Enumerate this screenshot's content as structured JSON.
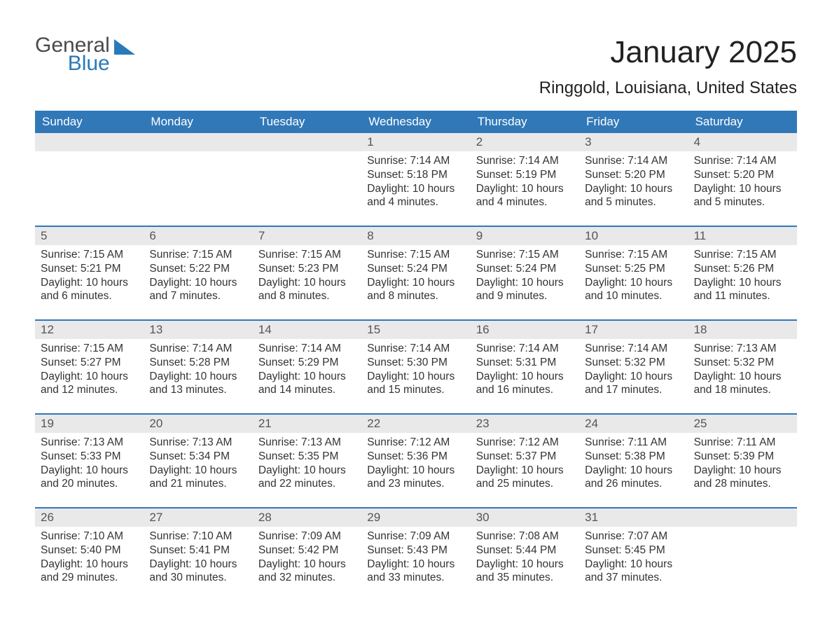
{
  "logo": {
    "general": "General",
    "blue": "Blue",
    "shape_color": "#2a7ab9"
  },
  "title": "January 2025",
  "subtitle": "Ringgold, Louisiana, United States",
  "colors": {
    "header_bg": "#3178b8",
    "header_text": "#ffffff",
    "daynum_bg": "#e9e9e9",
    "daynum_text": "#555555",
    "body_text": "#333333",
    "page_bg": "#ffffff",
    "week_border": "#3178b8"
  },
  "typography": {
    "title_fontsize": 44,
    "subtitle_fontsize": 24,
    "dayheader_fontsize": 17,
    "daynum_fontsize": 17,
    "body_fontsize": 15.5,
    "font_family": "Arial"
  },
  "day_names": [
    "Sunday",
    "Monday",
    "Tuesday",
    "Wednesday",
    "Thursday",
    "Friday",
    "Saturday"
  ],
  "weeks": [
    [
      {
        "day": "",
        "sunrise": "",
        "sunset": "",
        "daylight": ""
      },
      {
        "day": "",
        "sunrise": "",
        "sunset": "",
        "daylight": ""
      },
      {
        "day": "",
        "sunrise": "",
        "sunset": "",
        "daylight": ""
      },
      {
        "day": "1",
        "sunrise": "Sunrise: 7:14 AM",
        "sunset": "Sunset: 5:18 PM",
        "daylight": "Daylight: 10 hours and 4 minutes."
      },
      {
        "day": "2",
        "sunrise": "Sunrise: 7:14 AM",
        "sunset": "Sunset: 5:19 PM",
        "daylight": "Daylight: 10 hours and 4 minutes."
      },
      {
        "day": "3",
        "sunrise": "Sunrise: 7:14 AM",
        "sunset": "Sunset: 5:20 PM",
        "daylight": "Daylight: 10 hours and 5 minutes."
      },
      {
        "day": "4",
        "sunrise": "Sunrise: 7:14 AM",
        "sunset": "Sunset: 5:20 PM",
        "daylight": "Daylight: 10 hours and 5 minutes."
      }
    ],
    [
      {
        "day": "5",
        "sunrise": "Sunrise: 7:15 AM",
        "sunset": "Sunset: 5:21 PM",
        "daylight": "Daylight: 10 hours and 6 minutes."
      },
      {
        "day": "6",
        "sunrise": "Sunrise: 7:15 AM",
        "sunset": "Sunset: 5:22 PM",
        "daylight": "Daylight: 10 hours and 7 minutes."
      },
      {
        "day": "7",
        "sunrise": "Sunrise: 7:15 AM",
        "sunset": "Sunset: 5:23 PM",
        "daylight": "Daylight: 10 hours and 8 minutes."
      },
      {
        "day": "8",
        "sunrise": "Sunrise: 7:15 AM",
        "sunset": "Sunset: 5:24 PM",
        "daylight": "Daylight: 10 hours and 8 minutes."
      },
      {
        "day": "9",
        "sunrise": "Sunrise: 7:15 AM",
        "sunset": "Sunset: 5:24 PM",
        "daylight": "Daylight: 10 hours and 9 minutes."
      },
      {
        "day": "10",
        "sunrise": "Sunrise: 7:15 AM",
        "sunset": "Sunset: 5:25 PM",
        "daylight": "Daylight: 10 hours and 10 minutes."
      },
      {
        "day": "11",
        "sunrise": "Sunrise: 7:15 AM",
        "sunset": "Sunset: 5:26 PM",
        "daylight": "Daylight: 10 hours and 11 minutes."
      }
    ],
    [
      {
        "day": "12",
        "sunrise": "Sunrise: 7:15 AM",
        "sunset": "Sunset: 5:27 PM",
        "daylight": "Daylight: 10 hours and 12 minutes."
      },
      {
        "day": "13",
        "sunrise": "Sunrise: 7:14 AM",
        "sunset": "Sunset: 5:28 PM",
        "daylight": "Daylight: 10 hours and 13 minutes."
      },
      {
        "day": "14",
        "sunrise": "Sunrise: 7:14 AM",
        "sunset": "Sunset: 5:29 PM",
        "daylight": "Daylight: 10 hours and 14 minutes."
      },
      {
        "day": "15",
        "sunrise": "Sunrise: 7:14 AM",
        "sunset": "Sunset: 5:30 PM",
        "daylight": "Daylight: 10 hours and 15 minutes."
      },
      {
        "day": "16",
        "sunrise": "Sunrise: 7:14 AM",
        "sunset": "Sunset: 5:31 PM",
        "daylight": "Daylight: 10 hours and 16 minutes."
      },
      {
        "day": "17",
        "sunrise": "Sunrise: 7:14 AM",
        "sunset": "Sunset: 5:32 PM",
        "daylight": "Daylight: 10 hours and 17 minutes."
      },
      {
        "day": "18",
        "sunrise": "Sunrise: 7:13 AM",
        "sunset": "Sunset: 5:32 PM",
        "daylight": "Daylight: 10 hours and 18 minutes."
      }
    ],
    [
      {
        "day": "19",
        "sunrise": "Sunrise: 7:13 AM",
        "sunset": "Sunset: 5:33 PM",
        "daylight": "Daylight: 10 hours and 20 minutes."
      },
      {
        "day": "20",
        "sunrise": "Sunrise: 7:13 AM",
        "sunset": "Sunset: 5:34 PM",
        "daylight": "Daylight: 10 hours and 21 minutes."
      },
      {
        "day": "21",
        "sunrise": "Sunrise: 7:13 AM",
        "sunset": "Sunset: 5:35 PM",
        "daylight": "Daylight: 10 hours and 22 minutes."
      },
      {
        "day": "22",
        "sunrise": "Sunrise: 7:12 AM",
        "sunset": "Sunset: 5:36 PM",
        "daylight": "Daylight: 10 hours and 23 minutes."
      },
      {
        "day": "23",
        "sunrise": "Sunrise: 7:12 AM",
        "sunset": "Sunset: 5:37 PM",
        "daylight": "Daylight: 10 hours and 25 minutes."
      },
      {
        "day": "24",
        "sunrise": "Sunrise: 7:11 AM",
        "sunset": "Sunset: 5:38 PM",
        "daylight": "Daylight: 10 hours and 26 minutes."
      },
      {
        "day": "25",
        "sunrise": "Sunrise: 7:11 AM",
        "sunset": "Sunset: 5:39 PM",
        "daylight": "Daylight: 10 hours and 28 minutes."
      }
    ],
    [
      {
        "day": "26",
        "sunrise": "Sunrise: 7:10 AM",
        "sunset": "Sunset: 5:40 PM",
        "daylight": "Daylight: 10 hours and 29 minutes."
      },
      {
        "day": "27",
        "sunrise": "Sunrise: 7:10 AM",
        "sunset": "Sunset: 5:41 PM",
        "daylight": "Daylight: 10 hours and 30 minutes."
      },
      {
        "day": "28",
        "sunrise": "Sunrise: 7:09 AM",
        "sunset": "Sunset: 5:42 PM",
        "daylight": "Daylight: 10 hours and 32 minutes."
      },
      {
        "day": "29",
        "sunrise": "Sunrise: 7:09 AM",
        "sunset": "Sunset: 5:43 PM",
        "daylight": "Daylight: 10 hours and 33 minutes."
      },
      {
        "day": "30",
        "sunrise": "Sunrise: 7:08 AM",
        "sunset": "Sunset: 5:44 PM",
        "daylight": "Daylight: 10 hours and 35 minutes."
      },
      {
        "day": "31",
        "sunrise": "Sunrise: 7:07 AM",
        "sunset": "Sunset: 5:45 PM",
        "daylight": "Daylight: 10 hours and 37 minutes."
      },
      {
        "day": "",
        "sunrise": "",
        "sunset": "",
        "daylight": ""
      }
    ]
  ]
}
